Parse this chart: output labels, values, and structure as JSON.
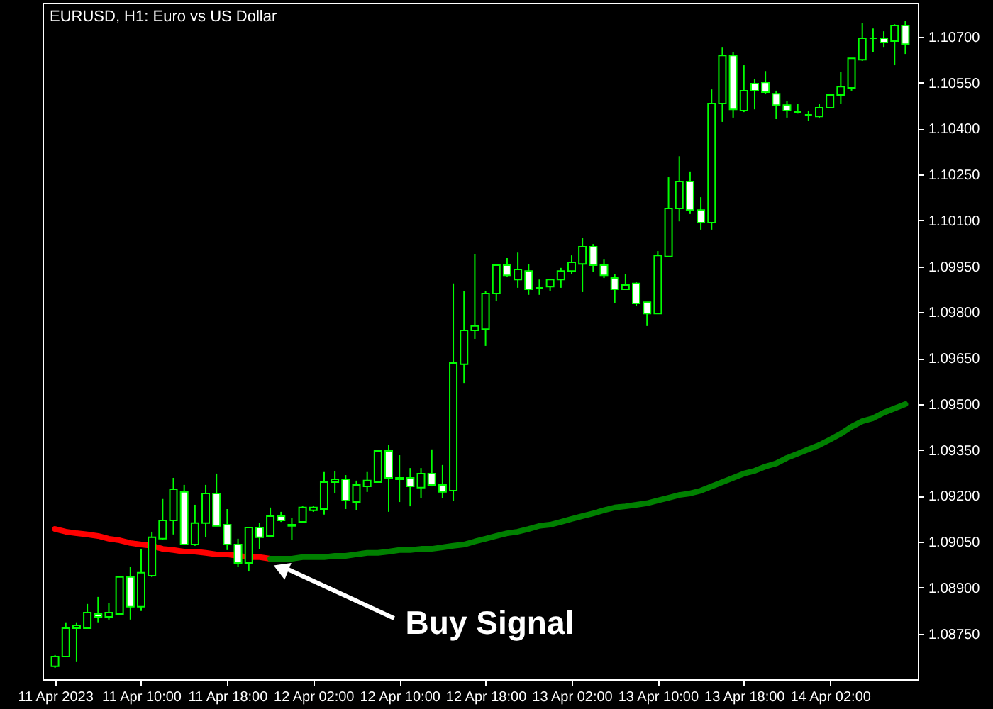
{
  "chart_data": {
    "type": "candlestick",
    "title": "EURUSD, H1:  Euro vs US Dollar",
    "categories": [
      "11 Apr 2023",
      null,
      null,
      null,
      null,
      null,
      null,
      null,
      "11 Apr 10:00",
      null,
      null,
      null,
      null,
      null,
      null,
      null,
      "11 Apr 18:00",
      null,
      null,
      null,
      null,
      null,
      null,
      null,
      "12 Apr 02:00",
      null,
      null,
      null,
      null,
      null,
      null,
      null,
      "12 Apr 10:00",
      null,
      null,
      null,
      null,
      null,
      null,
      null,
      "12 Apr 18:00",
      null,
      null,
      null,
      null,
      null,
      null,
      null,
      "13 Apr 02:00",
      null,
      null,
      null,
      null,
      null,
      null,
      null,
      "13 Apr 10:00",
      null,
      null,
      null,
      null,
      null,
      null,
      null,
      "13 Apr 18:00",
      null,
      null,
      null,
      null,
      null,
      null,
      null,
      "14 Apr 02:00",
      null,
      null,
      null,
      null,
      null,
      null,
      null
    ],
    "ohlc": [
      [
        1.08643,
        1.0868,
        1.08638,
        1.08675
      ],
      [
        1.08675,
        1.08787,
        1.08675,
        1.08768
      ],
      [
        1.08768,
        1.08787,
        1.08657,
        1.08777
      ],
      [
        1.08768,
        1.08847,
        1.08768,
        1.08819
      ],
      [
        1.08814,
        1.0887,
        1.08787,
        1.08805
      ],
      [
        1.08805,
        1.08851,
        1.08796,
        1.08819
      ],
      [
        1.08814,
        1.08935,
        1.08814,
        1.08935
      ],
      [
        1.08935,
        1.08967,
        1.08796,
        1.08838
      ],
      [
        1.08838,
        1.09027,
        1.08824,
        1.08949
      ],
      [
        1.08939,
        1.09083,
        1.08935,
        1.09065
      ],
      [
        1.0906,
        1.0919,
        1.09055,
        1.0912
      ],
      [
        1.0912,
        1.09259,
        1.09074,
        1.09222
      ],
      [
        1.09213,
        1.09236,
        1.09041,
        1.09041
      ],
      [
        1.09041,
        1.09171,
        1.09037,
        1.09111
      ],
      [
        1.09111,
        1.09236,
        1.09065,
        1.09208
      ],
      [
        1.09208,
        1.09273,
        1.09102,
        1.09102
      ],
      [
        1.09106,
        1.09157,
        1.09023,
        1.09041
      ],
      [
        1.09041,
        1.0906,
        1.08967,
        1.08981
      ],
      [
        1.08981,
        1.09097,
        1.08953,
        1.09097
      ],
      [
        1.09097,
        1.09111,
        1.09027,
        1.09065
      ],
      [
        1.09069,
        1.09162,
        1.09065,
        1.09134
      ],
      [
        1.09134,
        1.09148,
        1.09115,
        1.0912
      ],
      [
        1.09106,
        1.09129,
        1.09055,
        1.09102
      ],
      [
        1.09115,
        1.09166,
        1.09115,
        1.09162
      ],
      [
        1.09153,
        1.09166,
        1.09148,
        1.09162
      ],
      [
        1.09157,
        1.09278,
        1.09139,
        1.09245
      ],
      [
        1.09245,
        1.09282,
        1.09208,
        1.09254
      ],
      [
        1.09254,
        1.09268,
        1.09157,
        1.09185
      ],
      [
        1.0918,
        1.0925,
        1.09153,
        1.09236
      ],
      [
        1.09231,
        1.09278,
        1.09213,
        1.0925
      ],
      [
        1.09245,
        1.09347,
        1.09245,
        1.09347
      ],
      [
        1.09347,
        1.09366,
        1.09148,
        1.09259
      ],
      [
        1.09259,
        1.09333,
        1.0918,
        1.09254
      ],
      [
        1.09259,
        1.09291,
        1.09166,
        1.09231
      ],
      [
        1.09227,
        1.09291,
        1.09194,
        1.09273
      ],
      [
        1.09273,
        1.09352,
        1.09231,
        1.09236
      ],
      [
        1.09236,
        1.09301,
        1.09194,
        1.09213
      ],
      [
        1.09217,
        1.09894,
        1.09185,
        1.09634
      ],
      [
        1.0963,
        1.0987,
        1.09569,
        1.09741
      ],
      [
        1.09741,
        1.09991,
        1.09713,
        1.09755
      ],
      [
        1.09745,
        1.0987,
        1.0969,
        1.09861
      ],
      [
        1.09861,
        1.09954,
        1.09838,
        1.09954
      ],
      [
        1.09954,
        1.09977,
        1.09917,
        1.09921
      ],
      [
        1.09907,
        1.09995,
        1.0988,
        1.0994
      ],
      [
        1.09935,
        1.09958,
        1.09857,
        1.09875
      ],
      [
        1.0988,
        1.09907,
        1.09857,
        1.0988
      ],
      [
        1.09884,
        1.09907,
        1.0987,
        1.09907
      ],
      [
        1.09907,
        1.09945,
        1.0988,
        1.09935
      ],
      [
        1.09935,
        1.09986,
        1.09926,
        1.09963
      ],
      [
        1.09958,
        1.10042,
        1.09866,
        1.10014
      ],
      [
        1.10014,
        1.10023,
        1.09931,
        1.09954
      ],
      [
        1.09954,
        1.09972,
        1.09912,
        1.09921
      ],
      [
        1.09912,
        1.09926,
        1.09829,
        1.09875
      ],
      [
        1.09875,
        1.09926,
        1.09875,
        1.09889
      ],
      [
        1.09894,
        1.09898,
        1.0982,
        1.09829
      ],
      [
        1.09833,
        1.09833,
        1.09755,
        1.09796
      ],
      [
        1.09796,
        1.1,
        1.09796,
        1.09986
      ],
      [
        1.09982,
        1.10241,
        1.09982,
        1.10139
      ],
      [
        1.10139,
        1.1031,
        1.10097,
        1.10227
      ],
      [
        1.10227,
        1.1026,
        1.10121,
        1.10134
      ],
      [
        1.10134,
        1.10176,
        1.1007,
        1.10093
      ],
      [
        1.10093,
        1.10528,
        1.1007,
        1.10482
      ],
      [
        1.10482,
        1.10667,
        1.10422,
        1.10639
      ],
      [
        1.10639,
        1.10649,
        1.10436,
        1.10463
      ],
      [
        1.10459,
        1.10607,
        1.10454,
        1.10524
      ],
      [
        1.10547,
        1.10561,
        1.10463,
        1.10524
      ],
      [
        1.10551,
        1.10588,
        1.10514,
        1.10519
      ],
      [
        1.10514,
        1.10524,
        1.10431,
        1.10477
      ],
      [
        1.10477,
        1.10491,
        1.10436,
        1.10459
      ],
      [
        1.10454,
        1.10482,
        1.10449,
        1.10454
      ],
      [
        1.10445,
        1.10459,
        1.10426,
        1.10445
      ],
      [
        1.1044,
        1.10482,
        1.10436,
        1.10468
      ],
      [
        1.10468,
        1.1051,
        1.10468,
        1.1051
      ],
      [
        1.1051,
        1.10584,
        1.10482,
        1.10537
      ],
      [
        1.10533,
        1.1063,
        1.10524,
        1.1063
      ],
      [
        1.10625,
        1.10746,
        1.10621,
        1.10695
      ],
      [
        1.10695,
        1.10727,
        1.10649,
        1.10695
      ],
      [
        1.10695,
        1.10718,
        1.10667,
        1.10681
      ],
      [
        1.10686,
        1.10741,
        1.10607,
        1.10737
      ],
      [
        1.10737,
        1.10751,
        1.10644,
        1.10676
      ]
    ],
    "color": "#00ff00",
    "series": [
      {
        "type": "line",
        "color": "#ff0000",
        "values": [
          1.09092,
          1.09083,
          1.09078,
          1.09074,
          1.09069,
          1.0906,
          1.09055,
          1.09046,
          1.09041,
          1.09037,
          1.09027,
          1.09023,
          1.09018,
          1.09018,
          1.09014,
          1.09009,
          1.09009,
          1.09004,
          1.09,
          1.09,
          1.08995,
          null,
          null,
          null,
          null,
          null,
          null,
          null,
          null,
          null,
          null,
          null,
          null,
          null,
          null,
          null,
          null,
          null,
          null,
          null,
          null,
          null,
          null,
          null,
          null,
          null,
          null,
          null,
          null,
          null,
          null,
          null,
          null,
          null,
          null,
          null,
          null,
          null,
          null,
          null,
          null,
          null,
          null,
          null,
          null,
          null,
          null,
          null,
          null,
          null,
          null,
          null,
          null,
          null,
          null,
          null,
          null,
          null,
          null,
          null
        ]
      },
      {
        "type": "line",
        "color": "#008000",
        "values": [
          null,
          null,
          null,
          null,
          null,
          null,
          null,
          null,
          null,
          null,
          null,
          null,
          null,
          null,
          null,
          null,
          null,
          null,
          null,
          null,
          1.08995,
          1.08995,
          1.08995,
          1.09,
          1.09,
          1.09,
          1.09004,
          1.09004,
          1.09009,
          1.09014,
          1.09014,
          1.09018,
          1.09023,
          1.09023,
          1.09027,
          1.09027,
          1.09032,
          1.09037,
          1.09041,
          1.09051,
          1.0906,
          1.09069,
          1.09078,
          1.09083,
          1.09092,
          1.09102,
          1.09106,
          1.09115,
          1.09125,
          1.09134,
          1.09143,
          1.09153,
          1.09162,
          1.09166,
          1.09171,
          1.09176,
          1.09185,
          1.09194,
          1.09203,
          1.09208,
          1.09217,
          1.09231,
          1.09245,
          1.09259,
          1.09273,
          1.09282,
          1.09296,
          1.09306,
          1.09324,
          1.09338,
          1.09352,
          1.09366,
          1.09384,
          1.09403,
          1.09426,
          1.09444,
          1.09454,
          1.09472,
          1.09486,
          1.095
        ]
      }
    ],
    "ylim": [
      1.08601,
      1.10811
    ],
    "yticks": [
      {
        "value": 1.0875,
        "label": "1.08750"
      },
      {
        "value": 1.089,
        "label": "1.08900"
      },
      {
        "value": 1.0905,
        "label": "1.09050"
      },
      {
        "value": 1.092,
        "label": "1.09200"
      },
      {
        "value": 1.0935,
        "label": "1.09350"
      },
      {
        "value": 1.095,
        "label": "1.09500"
      },
      {
        "value": 1.0965,
        "label": "1.09650"
      },
      {
        "value": 1.098,
        "label": "1.09800"
      },
      {
        "value": 1.0995,
        "label": "1.09950"
      },
      {
        "value": 1.101,
        "label": "1.10100"
      },
      {
        "value": 1.1025,
        "label": "1.10250"
      },
      {
        "value": 1.104,
        "label": "1.10400"
      },
      {
        "value": 1.1055,
        "label": "1.10550"
      },
      {
        "value": 1.107,
        "label": "1.10700"
      }
    ],
    "annotations": [
      "Buy Signal"
    ]
  }
}
